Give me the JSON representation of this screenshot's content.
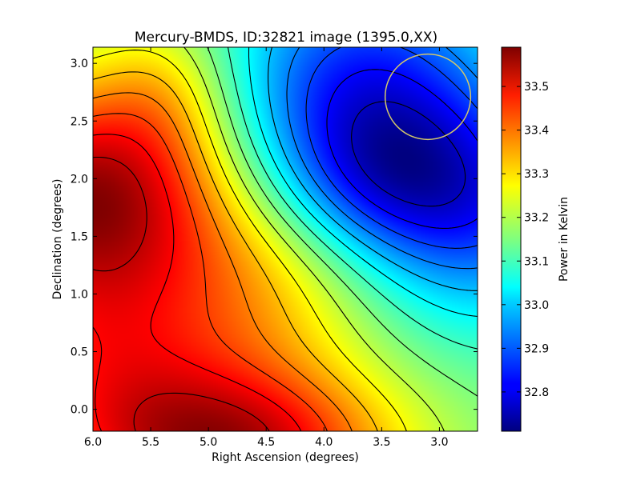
{
  "chart_data": {
    "type": "heatmap",
    "title": "Mercury-BMDS, ID:32821 image (1395.0,XX)",
    "xlabel": "Right Ascension (degrees)",
    "ylabel": "Declination (degrees)",
    "xlim": [
      6.0,
      2.67
    ],
    "ylim": [
      -0.19,
      3.14
    ],
    "x_inverted": true,
    "x_ticks": [
      6.0,
      5.5,
      5.0,
      4.5,
      4.0,
      3.5,
      3.0
    ],
    "x_tick_labels": [
      "6.0",
      "5.5",
      "5.0",
      "4.5",
      "4.0",
      "3.5",
      "3.0"
    ],
    "y_ticks": [
      0.0,
      0.5,
      1.0,
      1.5,
      2.0,
      2.5,
      3.0
    ],
    "y_tick_labels": [
      "0.0",
      "0.5",
      "1.0",
      "1.5",
      "2.0",
      "2.5",
      "3.0"
    ],
    "colorbar": {
      "label": "Power in Kelvin",
      "colormap": "jet",
      "range": [
        32.71,
        33.59
      ],
      "ticks": [
        32.8,
        32.9,
        33.0,
        33.1,
        33.2,
        33.3,
        33.4,
        33.5
      ],
      "tick_labels": [
        "32.8",
        "32.9",
        "33.0",
        "33.1",
        "33.2",
        "33.3",
        "33.4",
        "33.5"
      ]
    },
    "features": [
      {
        "kind": "max",
        "ra": 6.0,
        "dec": 1.85,
        "value": 33.59
      },
      {
        "kind": "max",
        "ra": 4.65,
        "dec": -0.19,
        "value": 33.55
      },
      {
        "kind": "min",
        "ra": 3.8,
        "dec": 2.35,
        "value": 32.71
      },
      {
        "kind": "min",
        "ra": 2.67,
        "dec": 1.6,
        "value": 32.74
      }
    ],
    "contour_levels": 16,
    "marker": {
      "shape": "circle",
      "ra": 3.1,
      "dec": 2.71,
      "radius_deg": 0.37,
      "color": "#d4c86a"
    }
  }
}
